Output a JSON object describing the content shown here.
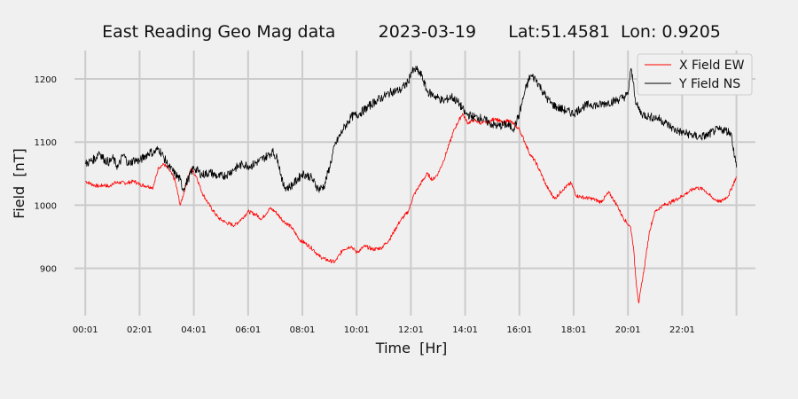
{
  "chart_data": {
    "type": "line",
    "title": "East Reading Geo Mag data        2023-03-19      Lat:51.4581  Lon: 0.9205",
    "xlabel": "Time  [Hr]",
    "ylabel": "Field  [nT]",
    "x_ticks": [
      "00:01",
      "02:01",
      "04:01",
      "06:01",
      "08:01",
      "10:01",
      "12:01",
      "14:01",
      "16:01",
      "18:01",
      "20:01",
      "22:01"
    ],
    "y_ticks": [
      900,
      1000,
      1100,
      1200
    ],
    "xlim_hours": [
      -0.4,
      24.7
    ],
    "ylim": [
      825,
      1245
    ],
    "grid": true,
    "legend_position": "top-right",
    "series": [
      {
        "name": "X Field EW",
        "color": "#ff0000",
        "hours": [
          0.0,
          0.3,
          0.5,
          0.7,
          0.9,
          1.0,
          1.3,
          1.5,
          1.8,
          2.0,
          2.3,
          2.5,
          2.7,
          2.9,
          3.1,
          3.3,
          3.5,
          3.7,
          3.9,
          4.1,
          4.3,
          4.6,
          4.9,
          5.2,
          5.5,
          5.8,
          6.0,
          6.3,
          6.5,
          6.8,
          7.0,
          7.3,
          7.6,
          7.9,
          8.1,
          8.4,
          8.6,
          8.8,
          9.0,
          9.2,
          9.5,
          9.8,
          10.0,
          10.3,
          10.6,
          10.9,
          11.2,
          11.4,
          11.6,
          11.9,
          12.1,
          12.3,
          12.6,
          12.8,
          13.0,
          13.2,
          13.4,
          13.6,
          13.9,
          14.1,
          14.3,
          14.6,
          14.9,
          15.1,
          15.4,
          15.6,
          15.8,
          16.0,
          16.2,
          16.4,
          16.6,
          16.8,
          17.0,
          17.3,
          17.6,
          17.9,
          18.1,
          18.4,
          18.7,
          19.0,
          19.3,
          19.6,
          19.8,
          20.0,
          20.1,
          20.2,
          20.3,
          20.4,
          20.6,
          20.8,
          21.0,
          21.3,
          21.6,
          21.9,
          22.2,
          22.5,
          22.8,
          23.1,
          23.4,
          23.7,
          24.0
        ],
        "values": [
          1038,
          1032,
          1030,
          1032,
          1029,
          1035,
          1036,
          1035,
          1038,
          1033,
          1030,
          1028,
          1060,
          1065,
          1055,
          1040,
          1000,
          1030,
          1058,
          1045,
          1020,
          998,
          980,
          972,
          968,
          980,
          990,
          985,
          978,
          995,
          990,
          975,
          965,
          945,
          940,
          930,
          920,
          915,
          912,
          910,
          930,
          935,
          925,
          935,
          930,
          932,
          945,
          960,
          975,
          990,
          1015,
          1030,
          1050,
          1040,
          1050,
          1070,
          1095,
          1120,
          1145,
          1130,
          1135,
          1130,
          1132,
          1138,
          1130,
          1135,
          1128,
          1120,
          1100,
          1080,
          1068,
          1050,
          1030,
          1010,
          1025,
          1035,
          1015,
          1012,
          1010,
          1005,
          1020,
          1000,
          982,
          970,
          965,
          935,
          880,
          845,
          900,
          960,
          990,
          1000,
          1005,
          1012,
          1020,
          1028,
          1025,
          1012,
          1005,
          1015,
          1045
        ]
      },
      {
        "name": "Y Field NS",
        "color": "#000000",
        "hours": [
          0.0,
          0.2,
          0.4,
          0.5,
          0.7,
          0.9,
          1.0,
          1.2,
          1.4,
          1.6,
          1.8,
          2.0,
          2.2,
          2.4,
          2.5,
          2.7,
          2.9,
          3.1,
          3.3,
          3.5,
          3.6,
          3.8,
          4.0,
          4.3,
          4.6,
          4.9,
          5.2,
          5.5,
          5.8,
          6.1,
          6.4,
          6.7,
          6.9,
          7.1,
          7.3,
          7.5,
          7.7,
          8.0,
          8.3,
          8.6,
          8.8,
          9.0,
          9.2,
          9.5,
          9.8,
          10.1,
          10.4,
          10.7,
          11.0,
          11.3,
          11.6,
          11.9,
          12.0,
          12.2,
          12.4,
          12.6,
          12.8,
          13.0,
          13.2,
          13.5,
          13.8,
          14.0,
          14.3,
          14.6,
          14.9,
          15.2,
          15.5,
          15.8,
          16.0,
          16.2,
          16.4,
          16.6,
          16.8,
          17.0,
          17.2,
          17.4,
          17.7,
          18.0,
          18.3,
          18.6,
          18.9,
          19.2,
          19.5,
          19.8,
          20.0,
          20.1,
          20.2,
          20.3,
          20.5,
          20.8,
          21.1,
          21.4,
          21.7,
          22.0,
          22.3,
          22.6,
          22.9,
          23.2,
          23.5,
          23.8,
          24.0
        ],
        "values": [
          1065,
          1070,
          1075,
          1085,
          1072,
          1068,
          1075,
          1060,
          1080,
          1065,
          1072,
          1070,
          1078,
          1085,
          1082,
          1090,
          1075,
          1060,
          1050,
          1040,
          1025,
          1042,
          1060,
          1048,
          1052,
          1045,
          1048,
          1058,
          1065,
          1062,
          1070,
          1078,
          1085,
          1072,
          1030,
          1028,
          1035,
          1050,
          1045,
          1025,
          1030,
          1060,
          1095,
          1120,
          1140,
          1145,
          1155,
          1165,
          1172,
          1180,
          1182,
          1195,
          1210,
          1215,
          1205,
          1180,
          1175,
          1170,
          1165,
          1172,
          1160,
          1145,
          1140,
          1138,
          1130,
          1125,
          1128,
          1122,
          1145,
          1180,
          1205,
          1200,
          1185,
          1170,
          1160,
          1155,
          1150,
          1145,
          1155,
          1160,
          1158,
          1162,
          1165,
          1170,
          1175,
          1215,
          1195,
          1160,
          1145,
          1140,
          1138,
          1130,
          1120,
          1115,
          1112,
          1108,
          1110,
          1118,
          1120,
          1115,
          1060
        ]
      }
    ]
  }
}
